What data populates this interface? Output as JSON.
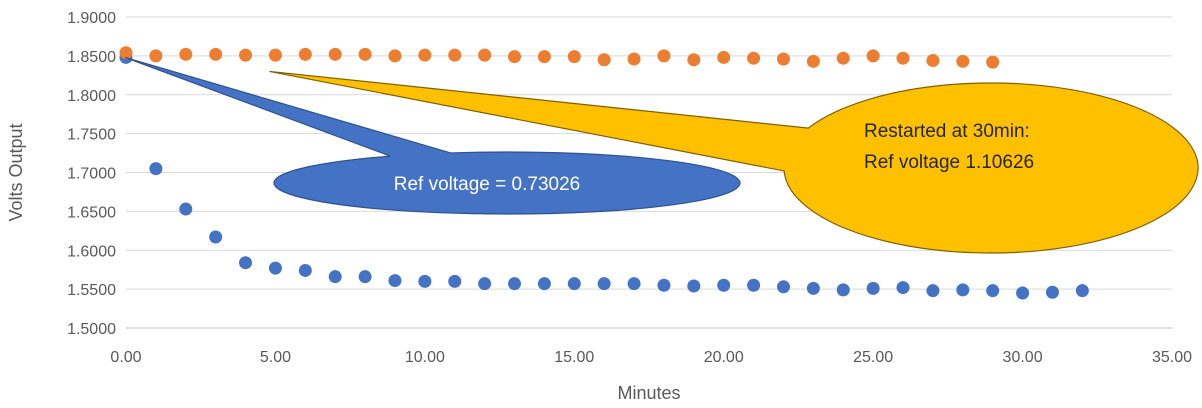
{
  "chart_data": {
    "type": "scatter",
    "title": "",
    "xlabel": "Minutes",
    "ylabel": "Volts Output",
    "xlim": [
      0,
      35
    ],
    "ylim": [
      1.5,
      1.9
    ],
    "x_ticks": [
      "0.00",
      "5.00",
      "10.00",
      "15.00",
      "20.00",
      "25.00",
      "30.00",
      "35.00"
    ],
    "y_ticks": [
      "1.5000",
      "1.5500",
      "1.6000",
      "1.6500",
      "1.7000",
      "1.7500",
      "1.8000",
      "1.8500",
      "1.9000"
    ],
    "grid": "horizontal",
    "legend": "none",
    "series": [
      {
        "color": "#4472C4",
        "points": [
          [
            0,
            1.848
          ],
          [
            1,
            1.705
          ],
          [
            2,
            1.653
          ],
          [
            3,
            1.617
          ],
          [
            4,
            1.584
          ],
          [
            5,
            1.577
          ],
          [
            6,
            1.574
          ],
          [
            7,
            1.566
          ],
          [
            8,
            1.566
          ],
          [
            9,
            1.561
          ],
          [
            10,
            1.56
          ],
          [
            11,
            1.56
          ],
          [
            12,
            1.557
          ],
          [
            13,
            1.557
          ],
          [
            14,
            1.557
          ],
          [
            15,
            1.557
          ],
          [
            16,
            1.557
          ],
          [
            17,
            1.557
          ],
          [
            18,
            1.555
          ],
          [
            19,
            1.554
          ],
          [
            20,
            1.555
          ],
          [
            21,
            1.555
          ],
          [
            22,
            1.553
          ],
          [
            23,
            1.551
          ],
          [
            24,
            1.549
          ],
          [
            25,
            1.551
          ],
          [
            26,
            1.552
          ],
          [
            27,
            1.548
          ],
          [
            28,
            1.549
          ],
          [
            29,
            1.548
          ],
          [
            30,
            1.545
          ],
          [
            31,
            1.546
          ],
          [
            32,
            1.548
          ]
        ]
      },
      {
        "color": "#ED7D31",
        "points": [
          [
            0,
            1.854
          ],
          [
            1,
            1.85
          ],
          [
            2,
            1.852
          ],
          [
            3,
            1.852
          ],
          [
            4,
            1.851
          ],
          [
            5,
            1.851
          ],
          [
            6,
            1.852
          ],
          [
            7,
            1.852
          ],
          [
            8,
            1.852
          ],
          [
            9,
            1.85
          ],
          [
            10,
            1.851
          ],
          [
            11,
            1.851
          ],
          [
            12,
            1.851
          ],
          [
            13,
            1.849
          ],
          [
            14,
            1.849
          ],
          [
            15,
            1.849
          ],
          [
            16,
            1.845
          ],
          [
            17,
            1.846
          ],
          [
            18,
            1.85
          ],
          [
            19,
            1.845
          ],
          [
            20,
            1.848
          ],
          [
            21,
            1.847
          ],
          [
            22,
            1.846
          ],
          [
            23,
            1.843
          ],
          [
            24,
            1.847
          ],
          [
            25,
            1.85
          ],
          [
            26,
            1.847
          ],
          [
            27,
            1.844
          ],
          [
            28,
            1.843
          ],
          [
            29,
            1.842
          ]
        ]
      }
    ],
    "annotations": [
      {
        "lines": [
          "Ref voltage = 0.73026"
        ],
        "color": "#4472C4",
        "text_color": "#FFFFFF",
        "points_to": [
          0,
          1.848
        ]
      },
      {
        "lines": [
          "Restarted at 30min:",
          "Ref voltage  1.10626"
        ],
        "color": "#FFC000",
        "text_color": "#262626",
        "points_to": [
          4.8,
          1.83
        ]
      }
    ]
  }
}
